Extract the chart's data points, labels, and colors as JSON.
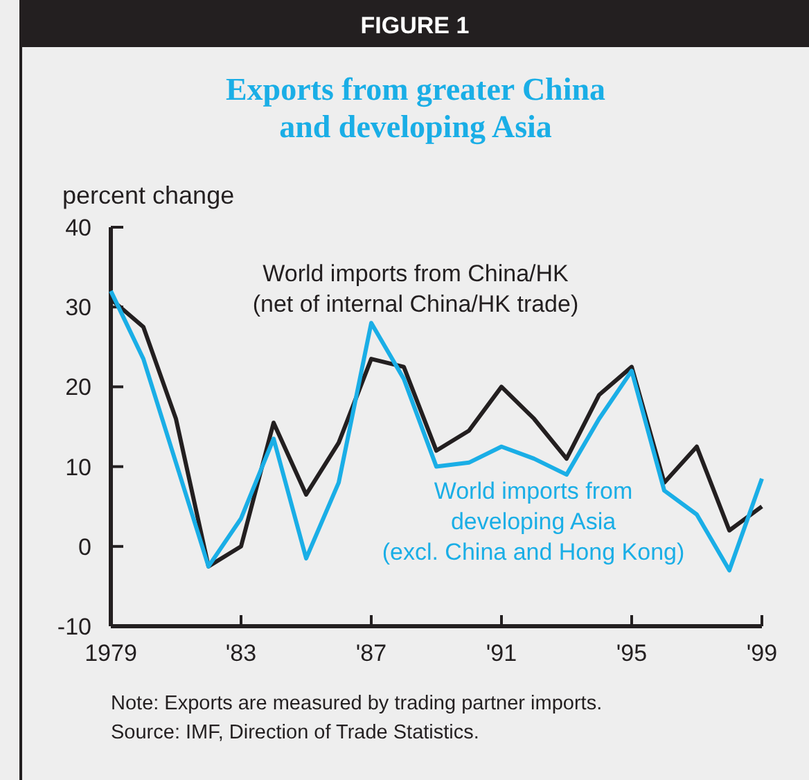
{
  "chart_data": {
    "type": "line",
    "title": "FIGURE 1",
    "subtitle": "Exports from greater China\nand developing Asia",
    "ylabel": "percent change",
    "x": [
      1979,
      1980,
      1981,
      1982,
      1983,
      1984,
      1985,
      1986,
      1987,
      1988,
      1989,
      1990,
      1991,
      1992,
      1993,
      1994,
      1995,
      1996,
      1997,
      1998,
      1999
    ],
    "series": [
      {
        "name": "World imports from China/HK\n(net of internal China/HK trade)",
        "color": "#231f20",
        "values": [
          31,
          27.5,
          16,
          -2.5,
          0,
          15.5,
          6.5,
          13,
          23.5,
          22.5,
          12,
          14.5,
          20,
          16,
          11,
          19,
          22.5,
          8,
          12.5,
          2,
          5
        ]
      },
      {
        "name": "World imports from\ndeveloping Asia\n(excl. China and Hong Kong)",
        "color": "#1aaee6",
        "values": [
          32,
          23.5,
          10.5,
          -2.5,
          3.5,
          13.5,
          -1.5,
          8,
          28,
          21,
          10,
          10.5,
          12.5,
          11,
          9,
          16,
          22,
          7,
          4,
          -3,
          8.5
        ]
      }
    ],
    "xlim": [
      1979,
      1999
    ],
    "xticks": [
      1979,
      {
        "value": 1983,
        "label": "'83"
      },
      {
        "value": 1987,
        "label": "'87"
      },
      {
        "value": 1991,
        "label": "'91"
      },
      {
        "value": 1995,
        "label": "'95"
      },
      {
        "value": 1999,
        "label": "'99"
      }
    ],
    "ylim": [
      -10,
      40
    ],
    "yticks": [
      -10,
      0,
      10,
      20,
      30,
      40
    ],
    "grid": false,
    "marker": "none",
    "line_style": "solid",
    "annotations": [
      "Note: Exports are measured by trading partner imports.",
      "Source: IMF, Direction of Trade Statistics."
    ]
  }
}
